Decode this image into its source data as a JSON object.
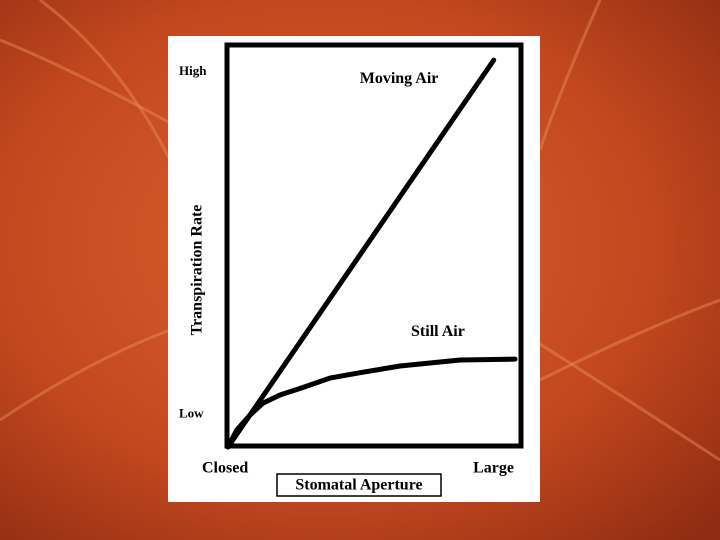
{
  "chart_data": {
    "type": "line",
    "x_label": "Stomatal Aperture",
    "y_label": "Transpiration Rate",
    "xlim": [
      0,
      100
    ],
    "ylim": [
      0,
      100
    ],
    "xticks": [
      {
        "value": 0,
        "label": "Closed"
      },
      {
        "value": 100,
        "label": "Large"
      }
    ],
    "yticks": [
      {
        "value": 8,
        "label": "Low"
      },
      {
        "value": 93,
        "label": "High"
      }
    ],
    "series": [
      {
        "name": "Moving Air",
        "color": "#000000",
        "x": [
          0,
          91
        ],
        "values": [
          0,
          96
        ]
      },
      {
        "name": "Still Air",
        "color": "#000000",
        "x": [
          0,
          3,
          7.5,
          12,
          17.8,
          25,
          34.9,
          45,
          58.9,
          79.5,
          98.3
        ],
        "values": [
          0,
          4.2,
          7.9,
          10.9,
          12.9,
          14.6,
          17.1,
          18.4,
          20.1,
          21.6,
          21.8
        ]
      }
    ]
  }
}
